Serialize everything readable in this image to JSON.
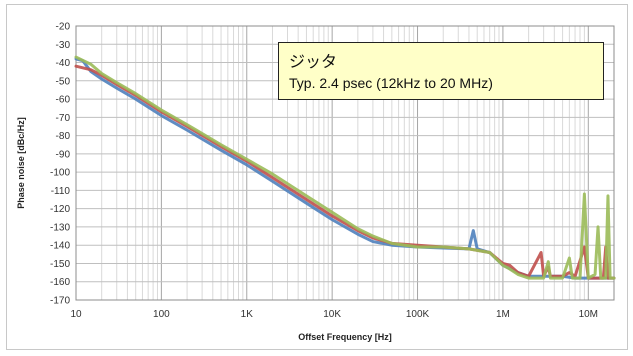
{
  "chart_data": {
    "type": "line",
    "title": "",
    "xlabel": "Offset Frequency [Hz]",
    "ylabel": "Phase noise [dBc/Hz]",
    "x_scale": "log",
    "xlim": [
      10,
      20000000
    ],
    "ylim": [
      -170,
      -20
    ],
    "grid": true,
    "x_ticks": [
      {
        "value": 10,
        "label": "10"
      },
      {
        "value": 100,
        "label": "100"
      },
      {
        "value": 1000,
        "label": "1K"
      },
      {
        "value": 10000,
        "label": "10K"
      },
      {
        "value": 100000,
        "label": "100K"
      },
      {
        "value": 1000000,
        "label": "1M"
      },
      {
        "value": 10000000,
        "label": "10M"
      }
    ],
    "y_ticks": [
      -20,
      -30,
      -40,
      -50,
      -60,
      -70,
      -80,
      -90,
      -100,
      -110,
      -120,
      -130,
      -140,
      -150,
      -160,
      -170
    ],
    "annotation": {
      "title": "ジッタ",
      "text": "Typ. 2.4 psec (12kHz to 20 MHz)"
    },
    "series": [
      {
        "color": "#4f81bd",
        "points": [
          [
            10,
            -38
          ],
          [
            12,
            -39
          ],
          [
            15,
            -45
          ],
          [
            20,
            -49
          ],
          [
            30,
            -54
          ],
          [
            50,
            -60
          ],
          [
            100,
            -69
          ],
          [
            200,
            -77
          ],
          [
            500,
            -88
          ],
          [
            1000,
            -96
          ],
          [
            2000,
            -105
          ],
          [
            5000,
            -117
          ],
          [
            10000,
            -126
          ],
          [
            20000,
            -134
          ],
          [
            30000,
            -138
          ],
          [
            50000,
            -140
          ],
          [
            100000,
            -141
          ],
          [
            200000,
            -141.5
          ],
          [
            400000,
            -142
          ],
          [
            450000,
            -132
          ],
          [
            500000,
            -142
          ],
          [
            700000,
            -144
          ],
          [
            1000000,
            -151
          ],
          [
            1500000,
            -155
          ],
          [
            2000000,
            -157
          ],
          [
            3000000,
            -157
          ],
          [
            5000000,
            -157
          ],
          [
            7000000,
            -158
          ],
          [
            10000000,
            -158
          ],
          [
            15000000,
            -158
          ],
          [
            20000000,
            -158
          ]
        ]
      },
      {
        "color": "#c0504d",
        "points": [
          [
            10,
            -42
          ],
          [
            15,
            -44
          ],
          [
            20,
            -47
          ],
          [
            30,
            -52
          ],
          [
            50,
            -58
          ],
          [
            100,
            -67
          ],
          [
            200,
            -75
          ],
          [
            500,
            -86
          ],
          [
            1000,
            -94
          ],
          [
            2000,
            -103
          ],
          [
            5000,
            -115
          ],
          [
            10000,
            -124
          ],
          [
            20000,
            -132
          ],
          [
            30000,
            -136
          ],
          [
            50000,
            -139
          ],
          [
            100000,
            -140
          ],
          [
            200000,
            -141
          ],
          [
            400000,
            -142
          ],
          [
            700000,
            -144
          ],
          [
            1000000,
            -150
          ],
          [
            1200000,
            -151
          ],
          [
            1500000,
            -155
          ],
          [
            2000000,
            -157
          ],
          [
            2800000,
            -144
          ],
          [
            3000000,
            -157
          ],
          [
            3400000,
            -152
          ],
          [
            3600000,
            -157
          ],
          [
            5000000,
            -157
          ],
          [
            6000000,
            -155
          ],
          [
            7000000,
            -157
          ],
          [
            9000000,
            -141
          ],
          [
            10000000,
            -158
          ],
          [
            15000000,
            -158
          ],
          [
            16000000,
            -141
          ],
          [
            17000000,
            -158
          ],
          [
            20000000,
            -158
          ]
        ]
      },
      {
        "color": "#9bbb59",
        "points": [
          [
            10,
            -37
          ],
          [
            15,
            -41
          ],
          [
            20,
            -46
          ],
          [
            30,
            -51
          ],
          [
            50,
            -57
          ],
          [
            100,
            -66
          ],
          [
            200,
            -74
          ],
          [
            500,
            -85
          ],
          [
            1000,
            -93
          ],
          [
            2000,
            -101
          ],
          [
            5000,
            -113
          ],
          [
            10000,
            -122
          ],
          [
            20000,
            -131
          ],
          [
            30000,
            -135
          ],
          [
            50000,
            -139
          ],
          [
            100000,
            -141
          ],
          [
            200000,
            -141
          ],
          [
            400000,
            -142
          ],
          [
            700000,
            -144
          ],
          [
            1000000,
            -151
          ],
          [
            1200000,
            -153
          ],
          [
            1500000,
            -156
          ],
          [
            2000000,
            -158
          ],
          [
            3000000,
            -158
          ],
          [
            3400000,
            -149
          ],
          [
            3600000,
            -158
          ],
          [
            5000000,
            -158
          ],
          [
            6000000,
            -147
          ],
          [
            6500000,
            -158
          ],
          [
            8000000,
            -158
          ],
          [
            9000000,
            -112
          ],
          [
            10000000,
            -158
          ],
          [
            12000000,
            -156
          ],
          [
            13000000,
            -130
          ],
          [
            14000000,
            -158
          ],
          [
            16000000,
            -158
          ],
          [
            17000000,
            -113
          ],
          [
            18000000,
            -158
          ],
          [
            20000000,
            -158
          ]
        ]
      }
    ]
  }
}
